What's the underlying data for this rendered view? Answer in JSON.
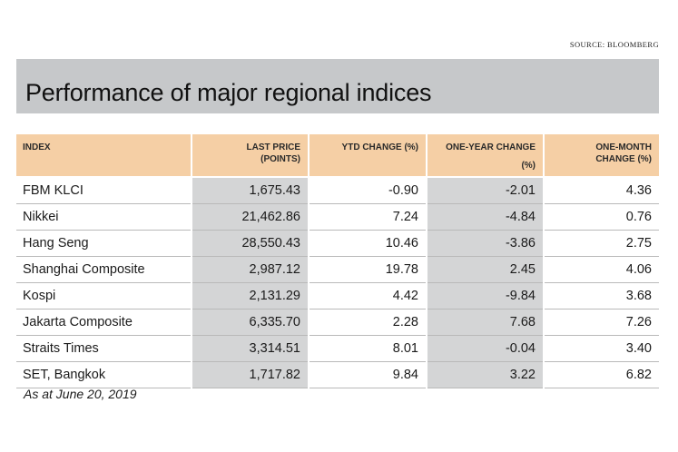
{
  "source": "SOURCE: BLOOMBERG",
  "title": "Performance of major regional indices",
  "headers": {
    "index": "INDEX",
    "last_price_l1": "LAST PRICE",
    "last_price_l2": "(POINTS)",
    "ytd": "YTD CHANGE (%)",
    "one_year_l1": "ONE-YEAR CHANGE",
    "one_year_l2": "(%)",
    "one_month_l1": "ONE-MONTH",
    "one_month_l2": "CHANGE (%)"
  },
  "rows": [
    {
      "index": "FBM KLCI",
      "last_price": "1,675.43",
      "ytd": "-0.90",
      "one_year": "-2.01",
      "one_month": "4.36"
    },
    {
      "index": "Nikkei",
      "last_price": "21,462.86",
      "ytd": "7.24",
      "one_year": "-4.84",
      "one_month": "0.76"
    },
    {
      "index": "Hang Seng",
      "last_price": "28,550.43",
      "ytd": "10.46",
      "one_year": "-3.86",
      "one_month": "2.75"
    },
    {
      "index": "Shanghai Composite",
      "last_price": "2,987.12",
      "ytd": "19.78",
      "one_year": "2.45",
      "one_month": "4.06"
    },
    {
      "index": "Kospi",
      "last_price": "2,131.29",
      "ytd": "4.42",
      "one_year": "-9.84",
      "one_month": "3.68"
    },
    {
      "index": "Jakarta Composite",
      "last_price": "6,335.70",
      "ytd": "2.28",
      "one_year": "7.68",
      "one_month": "7.26"
    },
    {
      "index": "Straits Times",
      "last_price": "3,314.51",
      "ytd": "8.01",
      "one_year": "-0.04",
      "one_month": "3.40"
    },
    {
      "index": "SET, Bangkok",
      "last_price": "1,717.82",
      "ytd": "9.84",
      "one_year": "3.22",
      "one_month": "6.82"
    }
  ],
  "footnote": "As at June 20, 2019",
  "colors": {
    "title_bar": "#c6c8ca",
    "header": "#f5cfa5",
    "shaded_column": "#d4d5d6"
  }
}
